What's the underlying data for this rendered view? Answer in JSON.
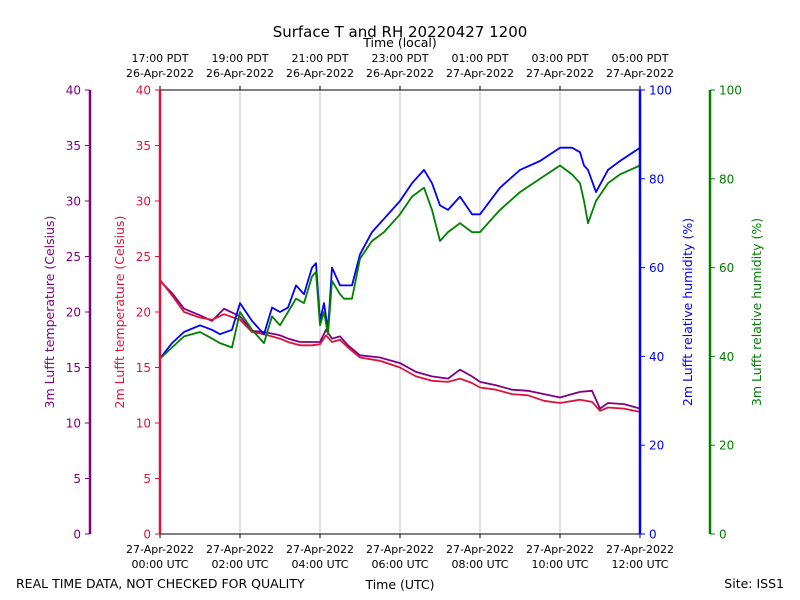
{
  "chart_data": {
    "type": "line",
    "title": "Surface T and RH 20220427 1200",
    "xlabel_bottom": "Time (UTC)",
    "xlabel_top": "Time (local)",
    "x_hours_utc_range": [
      0,
      12
    ],
    "grid": "vertical",
    "x_ticks_utc": [
      {
        "hour": 0,
        "date": "27-Apr-2022",
        "time": "00:00 UTC"
      },
      {
        "hour": 2,
        "date": "27-Apr-2022",
        "time": "02:00 UTC"
      },
      {
        "hour": 4,
        "date": "27-Apr-2022",
        "time": "04:00 UTC"
      },
      {
        "hour": 6,
        "date": "27-Apr-2022",
        "time": "06:00 UTC"
      },
      {
        "hour": 8,
        "date": "27-Apr-2022",
        "time": "08:00 UTC"
      },
      {
        "hour": 10,
        "date": "27-Apr-2022",
        "time": "10:00 UTC"
      },
      {
        "hour": 12,
        "date": "27-Apr-2022",
        "time": "12:00 UTC"
      }
    ],
    "x_ticks_local": [
      {
        "hour": 0,
        "time": "17:00 PDT",
        "date": "26-Apr-2022"
      },
      {
        "hour": 2,
        "time": "19:00 PDT",
        "date": "26-Apr-2022"
      },
      {
        "hour": 4,
        "time": "21:00 PDT",
        "date": "26-Apr-2022"
      },
      {
        "hour": 6,
        "time": "23:00 PDT",
        "date": "26-Apr-2022"
      },
      {
        "hour": 8,
        "time": "01:00 PDT",
        "date": "27-Apr-2022"
      },
      {
        "hour": 10,
        "time": "03:00 PDT",
        "date": "27-Apr-2022"
      },
      {
        "hour": 12,
        "time": "05:00 PDT",
        "date": "27-Apr-2022"
      }
    ],
    "axes": {
      "temp3m": {
        "label": "3m Lufft temperature (Celsius)",
        "ylim": [
          0,
          40
        ],
        "ticks": [
          "0",
          "5",
          "10",
          "15",
          "20",
          "25",
          "30",
          "35",
          "40"
        ],
        "color": "#800080"
      },
      "temp2m": {
        "label": "2m Lufft temperature (Celsius)",
        "ylim": [
          0,
          40
        ],
        "ticks": [
          "0",
          "5",
          "10",
          "15",
          "20",
          "25",
          "30",
          "35",
          "40"
        ],
        "color": "#dc143c"
      },
      "rh2m": {
        "label": "2m Lufft relative humidity (%)",
        "ylim": [
          0,
          100
        ],
        "ticks": [
          "0",
          "20",
          "40",
          "60",
          "80",
          "100"
        ],
        "color": "#0000ff"
      },
      "rh3m": {
        "label": "3m Lufft relative humidity (%)",
        "ylim": [
          0,
          100
        ],
        "ticks": [
          "0",
          "20",
          "40",
          "60",
          "80",
          "100"
        ],
        "color": "#008000"
      }
    },
    "series": [
      {
        "axis": "temp3m",
        "color": "#800080",
        "x": [
          0,
          0.3,
          0.6,
          1,
          1.3,
          1.6,
          2,
          2.3,
          2.6,
          3,
          3.2,
          3.5,
          3.8,
          4,
          4.15,
          4.3,
          4.5,
          4.7,
          5,
          5.5,
          6,
          6.4,
          6.8,
          7.2,
          7.5,
          7.8,
          8,
          8.4,
          8.8,
          9.2,
          9.6,
          10,
          10.5,
          10.8,
          11,
          11.2,
          11.6,
          12
        ],
        "values": [
          22.8,
          21.7,
          20.3,
          19.7,
          19.2,
          20.3,
          19.6,
          18.3,
          18.2,
          17.9,
          17.6,
          17.3,
          17.3,
          17.3,
          18.4,
          17.6,
          17.8,
          17.0,
          16.1,
          15.9,
          15.4,
          14.6,
          14.2,
          14.0,
          14.8,
          14.2,
          13.7,
          13.4,
          13.0,
          12.9,
          12.6,
          12.3,
          12.8,
          12.9,
          11.3,
          11.8,
          11.7,
          11.3
        ]
      },
      {
        "axis": "temp2m",
        "color": "#dc143c",
        "x": [
          0,
          0.3,
          0.6,
          1,
          1.3,
          1.6,
          2,
          2.3,
          2.6,
          3,
          3.2,
          3.5,
          3.8,
          4,
          4.15,
          4.3,
          4.5,
          4.7,
          5,
          5.5,
          6,
          6.4,
          6.8,
          7.2,
          7.5,
          7.8,
          8,
          8.4,
          8.8,
          9.2,
          9.6,
          10,
          10.5,
          10.8,
          11,
          11.2,
          11.6,
          12
        ],
        "values": [
          22.9,
          21.5,
          20.0,
          19.5,
          19.3,
          19.8,
          19.3,
          18.2,
          18.0,
          17.6,
          17.3,
          17.0,
          17.0,
          17.1,
          17.9,
          17.3,
          17.5,
          16.8,
          15.9,
          15.6,
          15.0,
          14.2,
          13.8,
          13.7,
          14.0,
          13.6,
          13.2,
          13.0,
          12.6,
          12.5,
          12.0,
          11.8,
          12.1,
          11.9,
          11.1,
          11.4,
          11.3,
          11.0
        ]
      },
      {
        "axis": "rh2m",
        "color": "#0000ff",
        "x": [
          0,
          0.3,
          0.6,
          1,
          1.3,
          1.5,
          1.8,
          2,
          2.3,
          2.6,
          2.8,
          3,
          3.2,
          3.4,
          3.6,
          3.8,
          3.9,
          4.0,
          4.1,
          4.2,
          4.3,
          4.5,
          4.6,
          4.8,
          5.0,
          5.3,
          5.6,
          6.0,
          6.3,
          6.6,
          6.8,
          7.0,
          7.2,
          7.5,
          7.8,
          8,
          8.5,
          9,
          9.5,
          10,
          10.3,
          10.5,
          10.6,
          10.7,
          10.9,
          11.2,
          11.5,
          12
        ],
        "values": [
          39.5,
          43,
          45.5,
          47,
          46,
          45,
          46,
          52,
          48,
          45,
          51,
          50,
          51,
          56,
          54,
          60,
          61,
          48,
          52,
          46,
          60,
          56,
          56,
          56,
          63,
          68,
          71,
          75,
          79,
          82,
          79,
          74,
          73,
          76,
          72,
          72,
          78,
          82,
          84,
          87,
          87,
          86,
          83,
          82,
          77,
          82,
          84,
          87
        ]
      },
      {
        "axis": "rh3m",
        "color": "#008000",
        "x": [
          0,
          0.3,
          0.6,
          1,
          1.3,
          1.5,
          1.8,
          2,
          2.3,
          2.6,
          2.8,
          3,
          3.2,
          3.4,
          3.6,
          3.8,
          3.9,
          4.0,
          4.1,
          4.2,
          4.3,
          4.5,
          4.6,
          4.8,
          5.0,
          5.3,
          5.6,
          6.0,
          6.3,
          6.6,
          6.8,
          7.0,
          7.2,
          7.5,
          7.8,
          8,
          8.5,
          9,
          9.5,
          10,
          10.3,
          10.5,
          10.6,
          10.7,
          10.9,
          11.2,
          11.5,
          12
        ],
        "values": [
          39.5,
          42,
          44.5,
          45.5,
          44,
          43,
          42,
          50,
          46,
          43,
          49,
          47,
          50,
          53,
          52,
          58,
          59,
          47,
          50,
          45,
          57,
          54,
          53,
          53,
          62,
          66,
          68,
          72,
          76,
          78,
          73,
          66,
          68,
          70,
          68,
          68,
          73,
          77,
          80,
          83,
          81,
          79,
          75,
          70,
          75,
          79,
          81,
          83
        ]
      }
    ]
  },
  "footer": {
    "disclaimer": "REAL TIME DATA, NOT CHECKED FOR QUALITY",
    "site": "Site: ISS1"
  }
}
